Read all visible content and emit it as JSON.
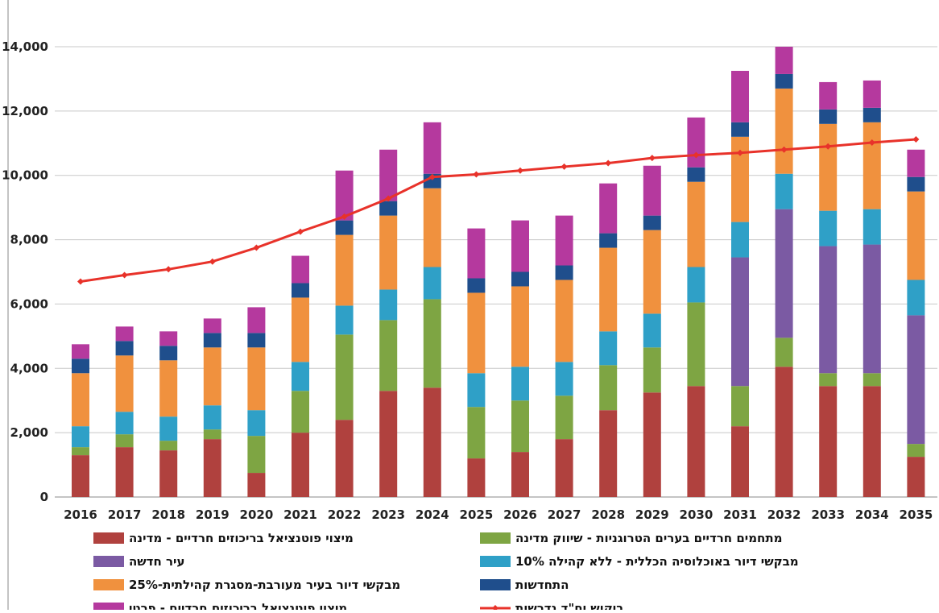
{
  "chart_data": {
    "type": "bar",
    "stacked": true,
    "categories": [
      "2016",
      "2017",
      "2018",
      "2019",
      "2020",
      "2021",
      "2022",
      "2023",
      "2024",
      "2025",
      "2026",
      "2027",
      "2028",
      "2029",
      "2030",
      "2031",
      "2032",
      "2033",
      "2034",
      "2035"
    ],
    "y_ticks": [
      "0",
      "2,000",
      "4,000",
      "6,000",
      "8,000",
      "10,000",
      "12,000",
      "14,000"
    ],
    "ylim": [
      0,
      14000
    ],
    "grid": true,
    "legend_position": "bottom",
    "series": [
      {
        "name": "מיצוי פוטנציאל בריכוזים חרדיים - מדינה",
        "color": "#b0413e",
        "values": [
          1300,
          1550,
          1450,
          1800,
          750,
          2000,
          2400,
          3300,
          3400,
          1200,
          1400,
          1800,
          2700,
          3250,
          3450,
          2200,
          4050,
          3450,
          3450,
          1250
        ]
      },
      {
        "name": "מתחמים חרדיים בערים הטרוגניות - שיווק מדינה",
        "color": "#7ea543",
        "values": [
          250,
          400,
          300,
          300,
          1150,
          1300,
          2650,
          2200,
          2750,
          1600,
          1600,
          1350,
          1400,
          1400,
          2600,
          1250,
          900,
          400,
          400,
          400
        ]
      },
      {
        "name": "עיר חדשה",
        "color": "#7b5aa3",
        "values": [
          0,
          0,
          0,
          0,
          0,
          0,
          0,
          0,
          0,
          0,
          0,
          0,
          0,
          0,
          0,
          4000,
          4000,
          3950,
          4000,
          4000
        ]
      },
      {
        "name": "מבקשי דיור באוכלוסיה הכללית - ללא קהילה 10%",
        "color": "#2fa0c7",
        "values": [
          650,
          700,
          750,
          750,
          800,
          900,
          900,
          950,
          1000,
          1050,
          1050,
          1050,
          1050,
          1050,
          1100,
          1100,
          1100,
          1100,
          1100,
          1100
        ]
      },
      {
        "name": "מבקשי דיור בעיר מעורבת-מסגרת קהילתית-25%",
        "color": "#f0913e",
        "values": [
          1650,
          1750,
          1750,
          1800,
          1950,
          2000,
          2200,
          2300,
          2450,
          2500,
          2500,
          2550,
          2600,
          2600,
          2650,
          2650,
          2650,
          2700,
          2700,
          2750
        ]
      },
      {
        "name": "התחדשות",
        "color": "#1f4e8c",
        "values": [
          450,
          450,
          450,
          450,
          450,
          450,
          450,
          450,
          450,
          450,
          450,
          450,
          450,
          450,
          450,
          450,
          450,
          450,
          450,
          450
        ]
      },
      {
        "name": "מיצוי פוטנציאל בריכוזים חרדיים - פרטי",
        "color": "#b5399e",
        "values": [
          450,
          450,
          450,
          450,
          800,
          850,
          1550,
          1600,
          1600,
          1550,
          1600,
          1550,
          1550,
          1550,
          1550,
          1600,
          850,
          850,
          850,
          850
        ]
      }
    ],
    "line_series": {
      "name": "ביקוש יח\"ד נדרשות",
      "color": "#e8322a",
      "values": [
        6700,
        6900,
        7080,
        7320,
        7750,
        8250,
        8720,
        9280,
        9950,
        10030,
        10150,
        10270,
        10380,
        10540,
        10630,
        10700,
        10800,
        10900,
        11020,
        11120
      ]
    }
  }
}
